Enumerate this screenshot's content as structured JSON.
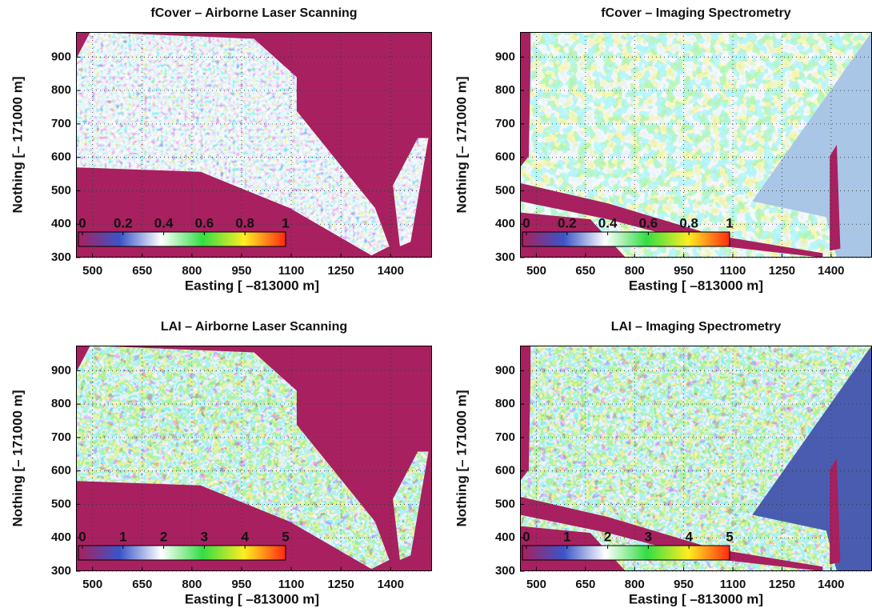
{
  "chart_data": [
    {
      "type": "heatmap",
      "title": "fCover – Airborne Laser Scanning",
      "xlabel": "Easting [ –813000 m]",
      "ylabel": "Nothing [– 171000 m]",
      "xlim": [
        450,
        1525
      ],
      "ylim": [
        300,
        975
      ],
      "xticks": [
        500,
        650,
        800,
        950,
        1100,
        1250,
        1400
      ],
      "yticks": [
        300,
        400,
        500,
        600,
        700,
        800,
        900
      ],
      "grid": true,
      "clim": [
        0,
        1
      ],
      "colorbar": {
        "ticks": [
          0,
          0.2,
          0.4,
          0.6,
          0.8,
          1
        ]
      },
      "colormap": [
        "#a8205f",
        "#3a55c8",
        "#ffffff",
        "#33dd44",
        "#ffee22",
        "#ff2a10"
      ]
    },
    {
      "type": "heatmap",
      "title": "fCover – Imaging Spectrometry",
      "xlabel": "Easting [ –813000 m]",
      "ylabel": "Nothing [– 171000 m]",
      "xlim": [
        450,
        1525
      ],
      "ylim": [
        300,
        975
      ],
      "xticks": [
        500,
        650,
        800,
        950,
        1100,
        1250,
        1400
      ],
      "yticks": [
        300,
        400,
        500,
        600,
        700,
        800,
        900
      ],
      "grid": true,
      "clim": [
        0,
        1
      ],
      "colorbar": {
        "ticks": [
          0,
          0.2,
          0.4,
          0.6,
          0.8,
          1
        ]
      },
      "colormap": [
        "#a8205f",
        "#3a55c8",
        "#ffffff",
        "#33dd44",
        "#ffee22",
        "#ff2a10"
      ]
    },
    {
      "type": "heatmap",
      "title": "LAI – Airborne Laser Scanning",
      "xlabel": "Easting [ –813000 m]",
      "ylabel": "Nothing [– 171000 m]",
      "xlim": [
        450,
        1525
      ],
      "ylim": [
        300,
        975
      ],
      "xticks": [
        500,
        650,
        800,
        950,
        1100,
        1250,
        1400
      ],
      "yticks": [
        300,
        400,
        500,
        600,
        700,
        800,
        900
      ],
      "grid": true,
      "clim": [
        0,
        5
      ],
      "colorbar": {
        "ticks": [
          0,
          1,
          2,
          3,
          4,
          5
        ]
      },
      "colormap": [
        "#a8205f",
        "#3a55c8",
        "#ffffff",
        "#33dd44",
        "#ffee22",
        "#ff2a10"
      ]
    },
    {
      "type": "heatmap",
      "title": "LAI – Imaging Spectrometry",
      "xlabel": "Easting [ –813000 m]",
      "ylabel": "Nothing [– 171000 m]",
      "xlim": [
        450,
        1525
      ],
      "ylim": [
        300,
        975
      ],
      "xticks": [
        500,
        650,
        800,
        950,
        1100,
        1250,
        1400
      ],
      "yticks": [
        300,
        400,
        500,
        600,
        700,
        800,
        900
      ],
      "grid": true,
      "clim": [
        0,
        5
      ],
      "colorbar": {
        "ticks": [
          0,
          1,
          2,
          3,
          4,
          5
        ]
      },
      "colormap": [
        "#a8205f",
        "#3a55c8",
        "#ffffff",
        "#33dd44",
        "#ffee22",
        "#ff2a10"
      ]
    }
  ]
}
